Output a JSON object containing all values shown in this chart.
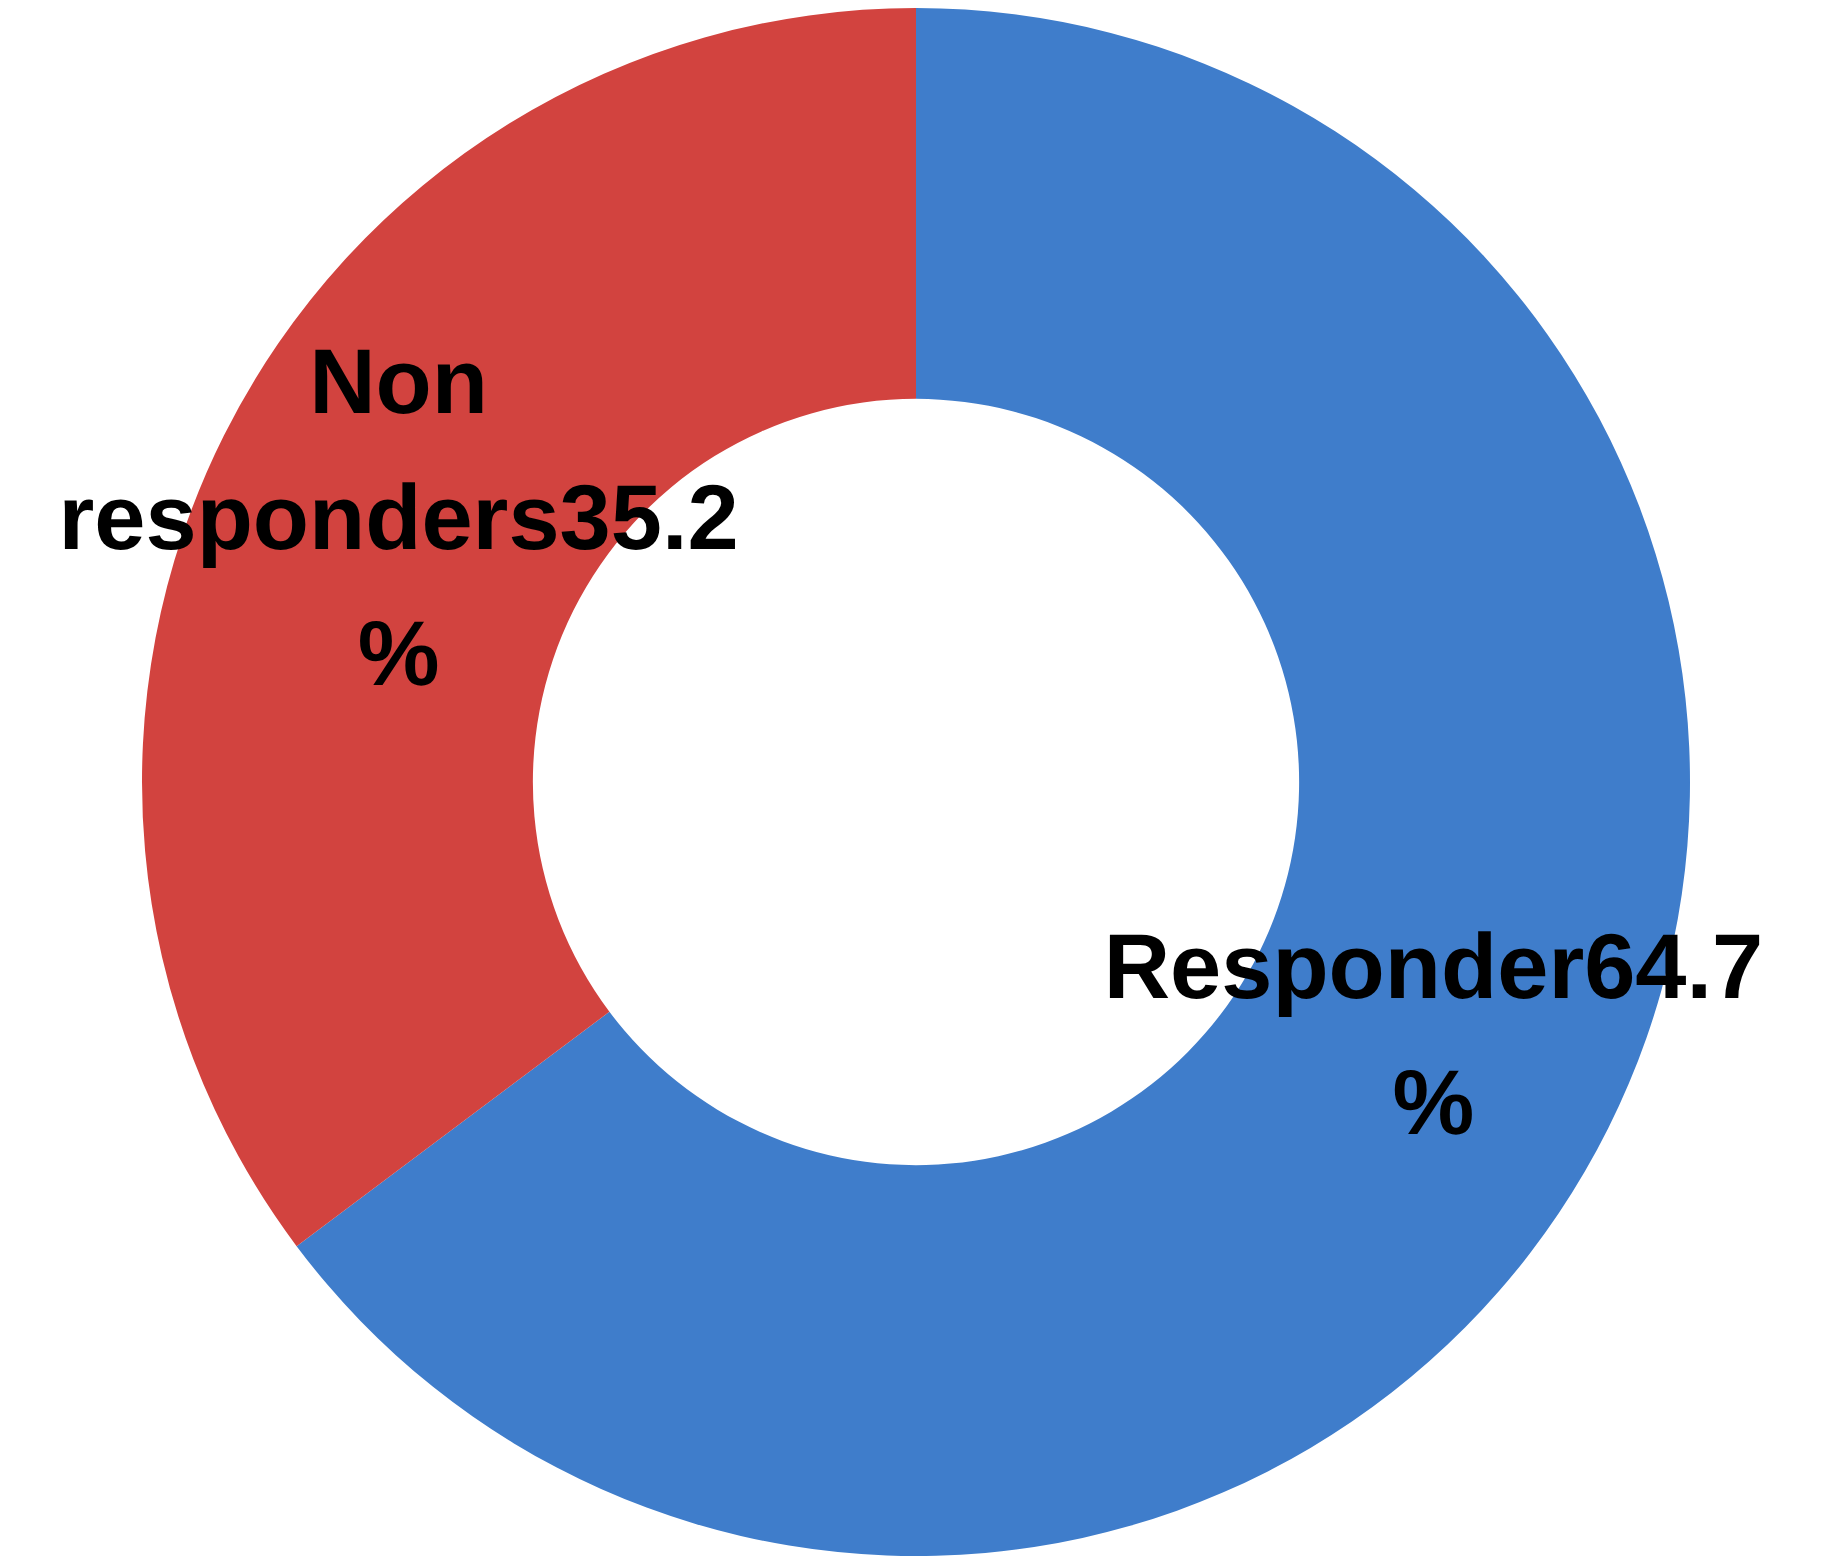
{
  "chart_data": {
    "type": "donut",
    "categories": [
      "Responder",
      "Non responders"
    ],
    "values": [
      64.7,
      35.2
    ],
    "colors": [
      "#3f7dcb",
      "#d2433f"
    ],
    "value_labels": [
      "64.7 %",
      "35.2 %"
    ]
  }
}
